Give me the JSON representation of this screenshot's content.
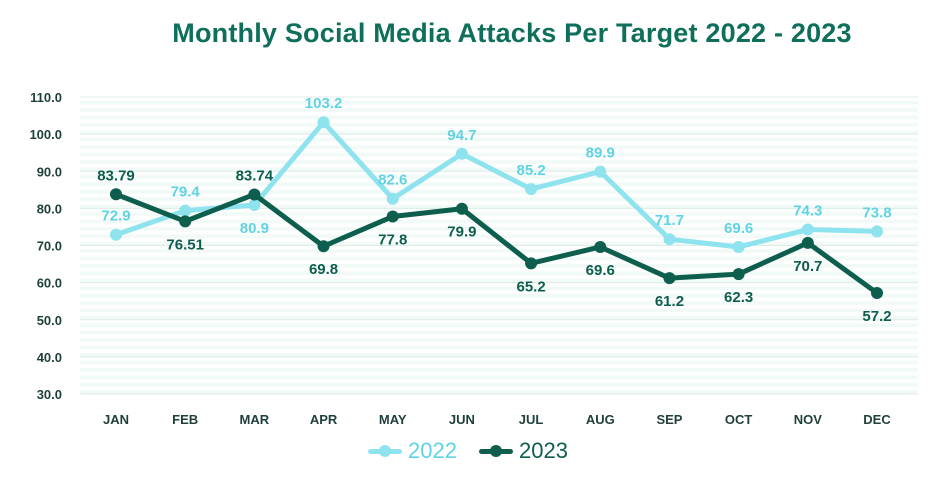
{
  "chart_data": {
    "type": "line",
    "title": "Monthly Social Media Attacks Per Target 2022 - 2023",
    "categories": [
      "JAN",
      "FEB",
      "MAR",
      "APR",
      "MAY",
      "JUN",
      "JUL",
      "AUG",
      "SEP",
      "OCT",
      "NOV",
      "DEC"
    ],
    "ylim": [
      30,
      110
    ],
    "yticks": [
      "30.0",
      "40.0",
      "50.0",
      "60.0",
      "70.0",
      "80.0",
      "90.0",
      "100.0",
      "110.0"
    ],
    "grid": true,
    "legend_position": "bottom",
    "series": [
      {
        "name": "2022",
        "color": "#8ee3ee",
        "values": [
          72.9,
          79.4,
          80.9,
          103.2,
          82.6,
          94.7,
          85.2,
          89.9,
          71.7,
          69.6,
          74.3,
          73.8
        ],
        "labels": [
          "72.9",
          "79.4",
          "80.9",
          "103.2",
          "82.6",
          "94.7",
          "85.2",
          "89.9",
          "71.7",
          "69.6",
          "74.3",
          "73.8"
        ]
      },
      {
        "name": "2023",
        "color": "#0e5e4e",
        "values": [
          83.79,
          76.51,
          83.74,
          69.8,
          77.8,
          79.9,
          65.2,
          69.6,
          61.2,
          62.3,
          70.7,
          57.2
        ],
        "labels": [
          "83.79",
          "76.51",
          "83.74",
          "69.8",
          "77.8",
          "79.9",
          "65.2",
          "69.6",
          "61.2",
          "62.3",
          "70.7",
          "57.2"
        ]
      }
    ]
  }
}
